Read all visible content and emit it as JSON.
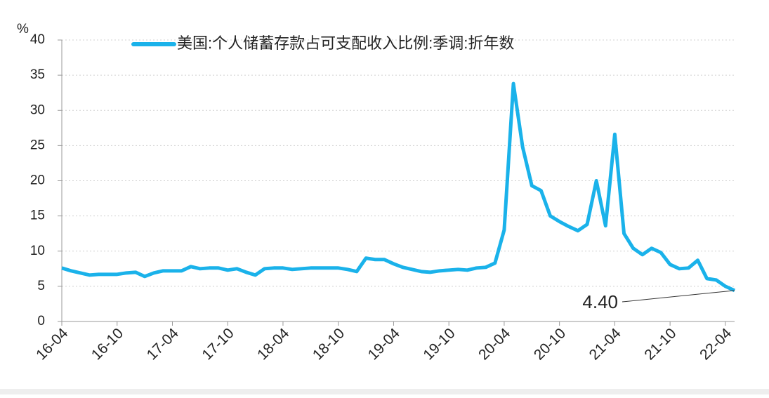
{
  "chart_data": {
    "type": "line",
    "y_unit": "%",
    "categories": [
      "16-04",
      null,
      null,
      null,
      null,
      null,
      "16-10",
      null,
      null,
      null,
      null,
      null,
      "17-04",
      null,
      null,
      null,
      null,
      null,
      "17-10",
      null,
      null,
      null,
      null,
      null,
      "18-04",
      null,
      null,
      null,
      null,
      null,
      "18-10",
      null,
      null,
      null,
      null,
      null,
      "19-04",
      null,
      null,
      null,
      null,
      null,
      "19-10",
      null,
      null,
      null,
      null,
      null,
      "20-04",
      null,
      null,
      null,
      null,
      null,
      "20-10",
      null,
      null,
      null,
      null,
      null,
      "21-04",
      null,
      null,
      null,
      null,
      null,
      "21-10",
      null,
      null,
      null,
      null,
      null,
      "22-04",
      null
    ],
    "series": [
      {
        "name": "美国:个人储蓄存款占可支配收入比例:季调:折年数",
        "color": "#1ab2ea",
        "values": [
          7.6,
          7.2,
          6.9,
          6.6,
          6.7,
          6.7,
          6.7,
          6.9,
          7.0,
          6.4,
          6.9,
          7.2,
          7.2,
          7.2,
          7.8,
          7.5,
          7.6,
          7.6,
          7.3,
          7.5,
          7.0,
          6.6,
          7.5,
          7.6,
          7.6,
          7.4,
          7.5,
          7.6,
          7.6,
          7.6,
          7.6,
          7.4,
          7.1,
          9.0,
          8.8,
          8.8,
          8.2,
          7.7,
          7.4,
          7.1,
          7.0,
          7.2,
          7.3,
          7.4,
          7.3,
          7.6,
          7.7,
          8.3,
          13.0,
          33.8,
          24.8,
          19.3,
          18.6,
          15.0,
          14.2,
          13.5,
          12.9,
          13.8,
          20.0,
          13.6,
          26.6,
          12.5,
          10.4,
          9.5,
          10.4,
          9.8,
          8.1,
          7.5,
          7.6,
          8.7,
          6.1,
          5.9,
          5.0,
          4.4
        ]
      }
    ],
    "annotations": [
      {
        "text": "4.40",
        "color": "#c00000"
      }
    ],
    "ylim": [
      0,
      40
    ],
    "yticks": [
      0,
      5,
      10,
      15,
      20,
      25,
      30,
      35,
      40
    ],
    "grid": true
  }
}
